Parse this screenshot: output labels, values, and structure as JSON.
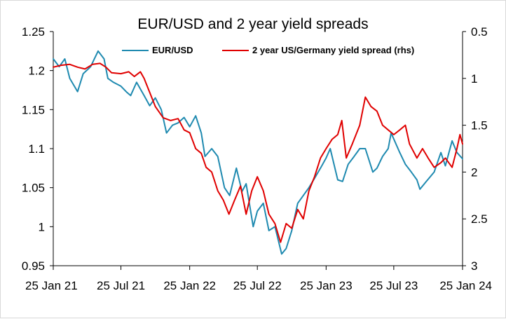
{
  "chart_data": {
    "type": "line",
    "title": "EUR/USD and 2 year yield spreads",
    "legend_placement": "top",
    "grid": false,
    "x_axis": {
      "type": "date",
      "range": [
        "2021-01-25",
        "2024-01-25"
      ],
      "tick_labels": [
        "25 Jan 21",
        "25 Jul 21",
        "25 Jan 22",
        "25 Jul 22",
        "25 Jan 23",
        "25 Jul 23",
        "25 Jan 24"
      ],
      "tick_dates": [
        "2021-01-25",
        "2021-07-25",
        "2022-01-25",
        "2022-07-25",
        "2023-01-25",
        "2023-07-25",
        "2024-01-25"
      ]
    },
    "y_axis_left": {
      "range": [
        0.95,
        1.25
      ],
      "tick_labels": [
        "0.95",
        "1",
        "1.05",
        "1.1",
        "1.15",
        "1.2",
        "1.25"
      ],
      "tick_values": [
        0.95,
        1.0,
        1.05,
        1.1,
        1.15,
        1.2,
        1.25
      ]
    },
    "y_axis_right": {
      "inverted": true,
      "range": [
        0.5,
        3
      ],
      "tick_labels": [
        "0.5",
        "1",
        "1.5",
        "2",
        "2.5",
        "3"
      ],
      "tick_values": [
        0.5,
        1.0,
        1.5,
        2.0,
        2.5,
        3.0
      ]
    },
    "series": [
      {
        "name": "EUR/USD",
        "axis": "left",
        "color": "#1f8ab0",
        "points": [
          [
            "2021-01-25",
            1.215
          ],
          [
            "2021-02-10",
            1.205
          ],
          [
            "2021-02-25",
            1.215
          ],
          [
            "2021-03-10",
            1.19
          ],
          [
            "2021-03-31",
            1.173
          ],
          [
            "2021-04-15",
            1.196
          ],
          [
            "2021-05-05",
            1.205
          ],
          [
            "2021-05-25",
            1.225
          ],
          [
            "2021-06-10",
            1.215
          ],
          [
            "2021-06-20",
            1.19
          ],
          [
            "2021-07-05",
            1.185
          ],
          [
            "2021-07-25",
            1.18
          ],
          [
            "2021-08-10",
            1.172
          ],
          [
            "2021-08-20",
            1.168
          ],
          [
            "2021-09-05",
            1.185
          ],
          [
            "2021-09-25",
            1.168
          ],
          [
            "2021-10-10",
            1.155
          ],
          [
            "2021-10-25",
            1.165
          ],
          [
            "2021-11-10",
            1.15
          ],
          [
            "2021-11-24",
            1.12
          ],
          [
            "2021-12-10",
            1.13
          ],
          [
            "2021-12-25",
            1.133
          ],
          [
            "2022-01-10",
            1.14
          ],
          [
            "2022-01-25",
            1.128
          ],
          [
            "2022-02-10",
            1.142
          ],
          [
            "2022-02-25",
            1.12
          ],
          [
            "2022-03-07",
            1.09
          ],
          [
            "2022-03-25",
            1.1
          ],
          [
            "2022-04-10",
            1.09
          ],
          [
            "2022-04-28",
            1.05
          ],
          [
            "2022-05-12",
            1.04
          ],
          [
            "2022-05-30",
            1.075
          ],
          [
            "2022-06-14",
            1.045
          ],
          [
            "2022-06-25",
            1.055
          ],
          [
            "2022-07-14",
            1.0
          ],
          [
            "2022-07-25",
            1.02
          ],
          [
            "2022-08-10",
            1.03
          ],
          [
            "2022-08-25",
            0.995
          ],
          [
            "2022-09-10",
            1.0
          ],
          [
            "2022-09-28",
            0.965
          ],
          [
            "2022-10-10",
            0.972
          ],
          [
            "2022-10-25",
            0.995
          ],
          [
            "2022-11-10",
            1.03
          ],
          [
            "2022-11-25",
            1.04
          ],
          [
            "2022-12-10",
            1.05
          ],
          [
            "2022-12-25",
            1.062
          ],
          [
            "2023-01-10",
            1.075
          ],
          [
            "2023-01-25",
            1.088
          ],
          [
            "2023-02-05",
            1.1
          ],
          [
            "2023-02-25",
            1.06
          ],
          [
            "2023-03-10",
            1.058
          ],
          [
            "2023-03-25",
            1.08
          ],
          [
            "2023-04-10",
            1.09
          ],
          [
            "2023-04-25",
            1.1
          ],
          [
            "2023-05-10",
            1.1
          ],
          [
            "2023-05-30",
            1.07
          ],
          [
            "2023-06-10",
            1.075
          ],
          [
            "2023-06-25",
            1.09
          ],
          [
            "2023-07-10",
            1.1
          ],
          [
            "2023-07-18",
            1.12
          ],
          [
            "2023-08-10",
            1.095
          ],
          [
            "2023-08-25",
            1.08
          ],
          [
            "2023-09-10",
            1.07
          ],
          [
            "2023-09-25",
            1.06
          ],
          [
            "2023-10-03",
            1.048
          ],
          [
            "2023-10-20",
            1.058
          ],
          [
            "2023-11-10",
            1.07
          ],
          [
            "2023-11-28",
            1.095
          ],
          [
            "2023-12-10",
            1.078
          ],
          [
            "2023-12-28",
            1.11
          ],
          [
            "2024-01-10",
            1.095
          ],
          [
            "2024-01-25",
            1.087
          ]
        ]
      },
      {
        "name": "2 year US/Germany yield spread (rhs)",
        "axis": "right",
        "color": "#e00000",
        "points": [
          [
            "2021-01-25",
            0.88
          ],
          [
            "2021-02-15",
            0.86
          ],
          [
            "2021-03-10",
            0.85
          ],
          [
            "2021-03-31",
            0.88
          ],
          [
            "2021-04-20",
            0.9
          ],
          [
            "2021-05-10",
            0.85
          ],
          [
            "2021-05-30",
            0.84
          ],
          [
            "2021-06-15",
            0.88
          ],
          [
            "2021-06-30",
            0.94
          ],
          [
            "2021-07-25",
            0.95
          ],
          [
            "2021-08-15",
            0.93
          ],
          [
            "2021-08-30",
            0.98
          ],
          [
            "2021-09-15",
            0.93
          ],
          [
            "2021-09-25",
            1.0
          ],
          [
            "2021-10-10",
            1.15
          ],
          [
            "2021-10-25",
            1.3
          ],
          [
            "2021-11-15",
            1.42
          ],
          [
            "2021-12-05",
            1.45
          ],
          [
            "2021-12-25",
            1.43
          ],
          [
            "2022-01-10",
            1.55
          ],
          [
            "2022-01-25",
            1.58
          ],
          [
            "2022-02-10",
            1.75
          ],
          [
            "2022-02-25",
            1.8
          ],
          [
            "2022-03-10",
            1.95
          ],
          [
            "2022-03-25",
            2.0
          ],
          [
            "2022-04-10",
            2.2
          ],
          [
            "2022-04-25",
            2.3
          ],
          [
            "2022-05-10",
            2.45
          ],
          [
            "2022-05-25",
            2.3
          ],
          [
            "2022-06-10",
            2.15
          ],
          [
            "2022-06-25",
            2.45
          ],
          [
            "2022-07-10",
            2.2
          ],
          [
            "2022-07-25",
            2.05
          ],
          [
            "2022-08-10",
            2.2
          ],
          [
            "2022-08-25",
            2.45
          ],
          [
            "2022-09-10",
            2.55
          ],
          [
            "2022-09-25",
            2.75
          ],
          [
            "2022-10-10",
            2.55
          ],
          [
            "2022-10-25",
            2.6
          ],
          [
            "2022-11-10",
            2.4
          ],
          [
            "2022-11-25",
            2.5
          ],
          [
            "2022-12-10",
            2.2
          ],
          [
            "2022-12-25",
            2.05
          ],
          [
            "2023-01-10",
            1.85
          ],
          [
            "2023-01-25",
            1.75
          ],
          [
            "2023-02-10",
            1.65
          ],
          [
            "2023-02-25",
            1.6
          ],
          [
            "2023-03-08",
            1.45
          ],
          [
            "2023-03-20",
            1.85
          ],
          [
            "2023-04-05",
            1.7
          ],
          [
            "2023-04-25",
            1.5
          ],
          [
            "2023-05-10",
            1.2
          ],
          [
            "2023-05-25",
            1.3
          ],
          [
            "2023-06-10",
            1.35
          ],
          [
            "2023-06-25",
            1.5
          ],
          [
            "2023-07-10",
            1.55
          ],
          [
            "2023-07-25",
            1.6
          ],
          [
            "2023-08-10",
            1.55
          ],
          [
            "2023-08-25",
            1.5
          ],
          [
            "2023-09-05",
            1.7
          ],
          [
            "2023-09-25",
            1.85
          ],
          [
            "2023-10-10",
            1.75
          ],
          [
            "2023-10-25",
            1.85
          ],
          [
            "2023-11-10",
            1.95
          ],
          [
            "2023-11-28",
            1.9
          ],
          [
            "2023-12-10",
            1.85
          ],
          [
            "2023-12-28",
            1.95
          ],
          [
            "2024-01-10",
            1.75
          ],
          [
            "2024-01-18",
            1.6
          ],
          [
            "2024-01-25",
            1.7
          ]
        ]
      }
    ]
  }
}
